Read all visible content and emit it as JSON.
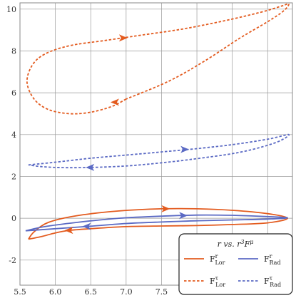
{
  "chart_data": {
    "type": "line",
    "title": "",
    "xlabel": "",
    "ylabel": "",
    "xlim": [
      5.5,
      9.35
    ],
    "ylim": [
      -3.2,
      10.3
    ],
    "grid": true,
    "x_ticks": [
      "5.5",
      "6.0",
      "6.5",
      "7.0",
      "7.5",
      "8.0",
      "8.5",
      "9.0"
    ],
    "x_tick_values": [
      5.5,
      6.0,
      6.5,
      7.0,
      7.5,
      8.0,
      8.5,
      9.0
    ],
    "y_ticks": [
      "-2",
      "0",
      "2",
      "4",
      "6",
      "8",
      "10"
    ],
    "y_tick_values": [
      -2,
      0,
      2,
      4,
      6,
      8,
      10
    ],
    "legend": {
      "title": "r vs. r³Fμ",
      "position": "bottom-right",
      "entries": [
        {
          "label": "FʳLor",
          "base": "F",
          "sup": "r",
          "sub": "Lor",
          "series": 0
        },
        {
          "label": "FʳRad",
          "base": "F",
          "sup": "r",
          "sub": "Rad",
          "series": 1
        },
        {
          "label": "FᵗLor",
          "base": "F",
          "sup": "τ",
          "sub": "Lor",
          "series": 2
        },
        {
          "label": "FᵗRad",
          "base": "F",
          "sup": "τ",
          "sub": "Rad",
          "series": 3
        }
      ]
    },
    "series": [
      {
        "name": "F^r_Lor",
        "color": "#e35b1f",
        "dash": "solid",
        "points": [
          [
            5.62,
            -1.0
          ],
          [
            5.7,
            -0.65
          ],
          [
            5.9,
            -0.2
          ],
          [
            6.3,
            0.12
          ],
          [
            6.9,
            0.35
          ],
          [
            7.5,
            0.45
          ],
          [
            8.0,
            0.45
          ],
          [
            8.5,
            0.38
          ],
          [
            9.0,
            0.22
          ],
          [
            9.28,
            0.0
          ],
          [
            9.0,
            -0.22
          ],
          [
            8.5,
            -0.3
          ],
          [
            8.0,
            -0.35
          ],
          [
            7.5,
            -0.37
          ],
          [
            7.0,
            -0.4
          ],
          [
            6.5,
            -0.5
          ],
          [
            6.2,
            -0.58
          ],
          [
            6.0,
            -0.7
          ],
          [
            5.8,
            -0.88
          ],
          [
            5.62,
            -1.0
          ]
        ],
        "arrows": [
          {
            "x": 7.55,
            "y": 0.45,
            "dir": 1
          },
          {
            "x": 6.2,
            "y": -0.58,
            "dir": -1
          }
        ]
      },
      {
        "name": "F^r_Rad",
        "color": "#5b6ac4",
        "dash": "solid",
        "points": [
          [
            5.58,
            -0.6
          ],
          [
            5.85,
            -0.4
          ],
          [
            6.3,
            -0.2
          ],
          [
            6.9,
            0.0
          ],
          [
            7.5,
            0.1
          ],
          [
            8.0,
            0.15
          ],
          [
            8.5,
            0.14
          ],
          [
            9.0,
            0.08
          ],
          [
            9.28,
            0.02
          ],
          [
            9.0,
            -0.04
          ],
          [
            8.5,
            -0.08
          ],
          [
            8.0,
            -0.12
          ],
          [
            7.5,
            -0.18
          ],
          [
            7.0,
            -0.25
          ],
          [
            6.5,
            -0.38
          ],
          [
            6.0,
            -0.5
          ],
          [
            5.58,
            -0.6
          ]
        ],
        "arrows": [
          {
            "x": 7.8,
            "y": 0.13,
            "dir": 1
          },
          {
            "x": 6.45,
            "y": -0.39,
            "dir": -1
          }
        ]
      },
      {
        "name": "F^tau_Lor",
        "color": "#e35b1f",
        "dash": "dashed",
        "points": [
          [
            7.0,
            5.7
          ],
          [
            6.8,
            5.35
          ],
          [
            6.5,
            5.07
          ],
          [
            6.2,
            5.0
          ],
          [
            5.9,
            5.2
          ],
          [
            5.7,
            5.7
          ],
          [
            5.6,
            6.5
          ],
          [
            5.67,
            7.3
          ],
          [
            5.85,
            7.85
          ],
          [
            6.2,
            8.25
          ],
          [
            6.7,
            8.5
          ],
          [
            7.2,
            8.75
          ],
          [
            7.8,
            9.05
          ],
          [
            8.4,
            9.45
          ],
          [
            8.9,
            9.85
          ],
          [
            9.2,
            10.15
          ],
          [
            9.3,
            10.25
          ],
          [
            9.22,
            9.9
          ],
          [
            9.0,
            9.4
          ],
          [
            8.6,
            8.6
          ],
          [
            8.1,
            7.5
          ],
          [
            7.6,
            6.55
          ],
          [
            7.0,
            5.7
          ]
        ],
        "arrows": [
          {
            "x": 6.95,
            "y": 8.62,
            "dir": 1
          },
          {
            "x": 6.85,
            "y": 5.55,
            "dir": -1
          }
        ]
      },
      {
        "name": "F^tau_Rad",
        "color": "#5b6ac4",
        "dash": "dashed",
        "points": [
          [
            5.62,
            2.55
          ],
          [
            6.0,
            2.68
          ],
          [
            6.5,
            2.87
          ],
          [
            7.0,
            3.02
          ],
          [
            7.5,
            3.17
          ],
          [
            8.0,
            3.33
          ],
          [
            8.5,
            3.52
          ],
          [
            9.0,
            3.78
          ],
          [
            9.3,
            4.0
          ],
          [
            9.1,
            3.6
          ],
          [
            8.6,
            3.15
          ],
          [
            8.0,
            2.85
          ],
          [
            7.5,
            2.65
          ],
          [
            7.0,
            2.5
          ],
          [
            6.5,
            2.43
          ],
          [
            6.1,
            2.42
          ],
          [
            5.8,
            2.47
          ],
          [
            5.62,
            2.55
          ]
        ],
        "arrows": [
          {
            "x": 7.82,
            "y": 3.29,
            "dir": 1
          },
          {
            "x": 6.5,
            "y": 2.43,
            "dir": -1
          }
        ]
      }
    ]
  }
}
